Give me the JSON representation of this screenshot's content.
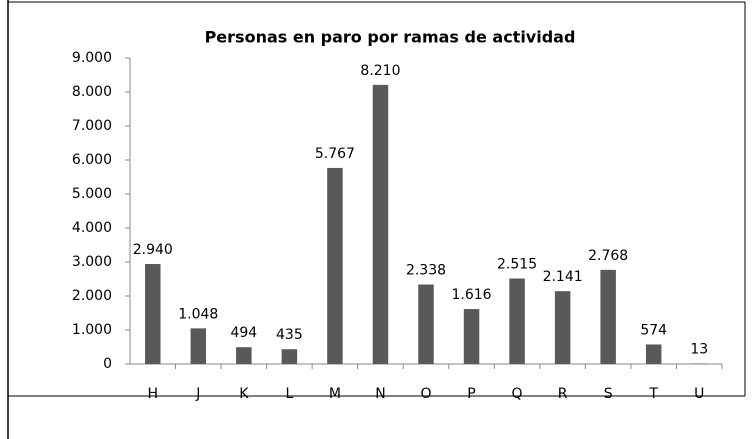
{
  "chart_data": {
    "type": "bar",
    "title": "Personas en paro por ramas de actividad",
    "categories": [
      "H",
      "J",
      "K",
      "L",
      "M",
      "N",
      "O",
      "P",
      "Q",
      "R",
      "S",
      "T",
      "U"
    ],
    "values": [
      2940,
      1048,
      494,
      435,
      5767,
      8210,
      2338,
      1616,
      2515,
      2141,
      2768,
      574,
      13
    ],
    "value_labels": [
      "2.940",
      "1.048",
      "494",
      "435",
      "5.767",
      "8.210",
      "2.338",
      "1.616",
      "2.515",
      "2.141",
      "2.768",
      "574",
      "13"
    ],
    "color": "#595959",
    "ylim": [
      0,
      9000
    ],
    "yticks": [
      0,
      {
        "value": 1000,
        "label": "1.000"
      },
      {
        "value": 2000,
        "label": "2.000"
      },
      {
        "value": 3000,
        "label": "3.000"
      },
      {
        "value": 4000,
        "label": "4.000"
      },
      {
        "value": 5000,
        "label": "5.000"
      },
      {
        "value": 6000,
        "label": "6.000"
      },
      {
        "value": 7000,
        "label": "7.000"
      },
      {
        "value": 8000,
        "label": "8.000"
      },
      {
        "value": 9000,
        "label": "9.000"
      }
    ],
    "grid": false
  }
}
